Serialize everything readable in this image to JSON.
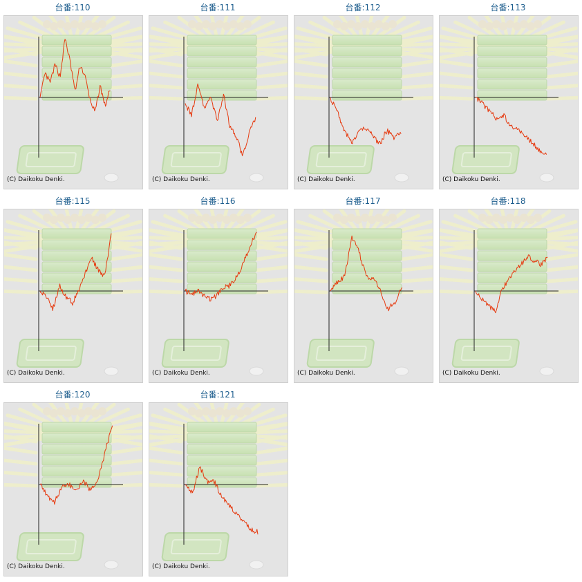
{
  "page": {
    "copyright": "(C) Daikoku Denki."
  },
  "colors": {
    "line": "#e63a10",
    "axis": "#222222",
    "title": "#1f5f8f",
    "panel_bg": "#e4e4e4"
  },
  "chart_data": [
    {
      "type": "line",
      "title": "台番:110",
      "trend": [
        0,
        0.4,
        0.25,
        0.55,
        0.35,
        1.0,
        0.6,
        0.1,
        0.55,
        0.35,
        -0.05,
        -0.25,
        0.2,
        -0.15,
        0.15
      ]
    },
    {
      "type": "line",
      "title": "台番:111",
      "trend": [
        -0.1,
        -0.3,
        0.25,
        -0.2,
        0.0,
        -0.4,
        0.05,
        -0.5,
        -0.65,
        -1.0,
        -0.6,
        -0.35
      ]
    },
    {
      "type": "line",
      "title": "台番:112",
      "trend": [
        0.0,
        -0.25,
        -0.55,
        -0.75,
        -0.6,
        -0.5,
        -0.65,
        -0.78,
        -0.55,
        -0.68,
        -0.6
      ]
    },
    {
      "type": "line",
      "title": "台番:113",
      "trend": [
        0.0,
        -0.1,
        -0.25,
        -0.35,
        -0.3,
        -0.5,
        -0.55,
        -0.65,
        -0.75,
        -0.9,
        -0.92
      ]
    },
    {
      "type": "line",
      "title": "台番:115",
      "trend": [
        0.0,
        -0.1,
        -0.3,
        0.1,
        -0.1,
        -0.2,
        0.0,
        0.3,
        0.55,
        0.35,
        0.25,
        0.95
      ]
    },
    {
      "type": "line",
      "title": "台番:116",
      "trend": [
        0.0,
        -0.05,
        0.0,
        -0.1,
        -0.15,
        -0.05,
        0.05,
        0.1,
        0.25,
        0.5,
        0.75,
        1.0
      ]
    },
    {
      "type": "line",
      "title": "台番:117",
      "trend": [
        0.0,
        0.15,
        0.25,
        0.9,
        0.65,
        0.25,
        0.2,
        0.0,
        -0.3,
        -0.2,
        0.1
      ]
    },
    {
      "type": "line",
      "title": "台番:118",
      "trend": [
        0.0,
        -0.15,
        -0.25,
        -0.35,
        0.0,
        0.2,
        0.35,
        0.45,
        0.6,
        0.5,
        0.45,
        0.55
      ]
    },
    {
      "type": "line",
      "title": "台番:120",
      "trend": [
        0.0,
        -0.2,
        -0.3,
        -0.05,
        0.0,
        -0.1,
        0.05,
        -0.1,
        0.1,
        0.55,
        1.0
      ]
    },
    {
      "type": "line",
      "title": "台番:121",
      "trend": [
        0.0,
        -0.15,
        0.3,
        0.05,
        0.05,
        -0.2,
        -0.35,
        -0.5,
        -0.6,
        -0.75,
        -0.8
      ]
    }
  ]
}
